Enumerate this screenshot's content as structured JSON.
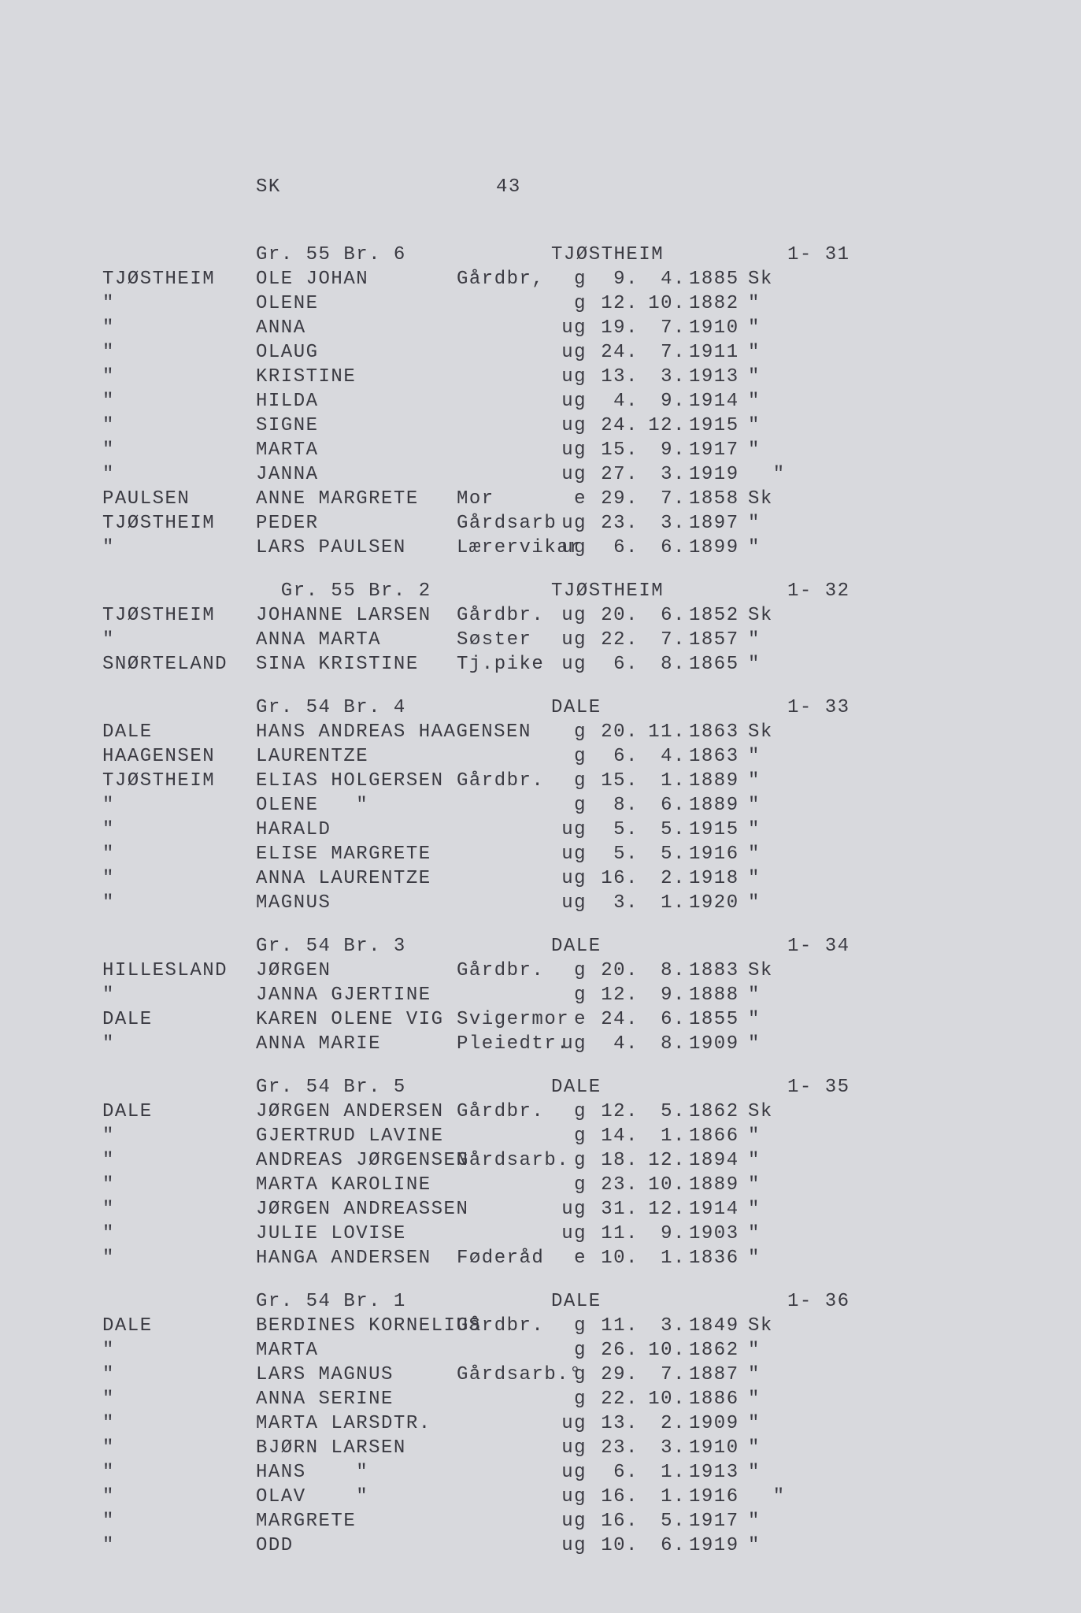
{
  "header": {
    "left": "SK",
    "page": "43"
  },
  "sections": [
    {
      "gr": "Gr. 55 Br. 6",
      "loc": "TJØSTHEIM",
      "code": "1- 31",
      "rows": [
        {
          "surname": "TJØSTHEIM",
          "name": "OLE JOHAN",
          "occ": "Gårdbr,",
          "stat": "g",
          "day": "9",
          "mon": "4",
          "year": "1885",
          "src": "Sk"
        },
        {
          "surname": "\"",
          "name": "OLENE",
          "occ": "",
          "stat": "g",
          "day": "12",
          "mon": "10",
          "year": "1882",
          "src": "\""
        },
        {
          "surname": "\"",
          "name": "ANNA",
          "occ": "",
          "stat": "ug",
          "day": "19",
          "mon": "7",
          "year": "1910",
          "src": "\""
        },
        {
          "surname": "\"",
          "name": "OLAUG",
          "occ": "",
          "stat": "ug",
          "day": "24",
          "mon": "7",
          "year": "1911",
          "src": "\""
        },
        {
          "surname": "\"",
          "name": "KRISTINE",
          "occ": "",
          "stat": "ug",
          "day": "13",
          "mon": "3",
          "year": "1913",
          "src": "\""
        },
        {
          "surname": "\"",
          "name": "HILDA",
          "occ": "",
          "stat": "ug",
          "day": "4",
          "mon": "9",
          "year": "1914",
          "src": "\""
        },
        {
          "surname": "\"",
          "name": "SIGNE",
          "occ": "",
          "stat": "ug",
          "day": "24",
          "mon": "12",
          "year": "1915",
          "src": "\""
        },
        {
          "surname": "\"",
          "name": "MARTA",
          "occ": "",
          "stat": "ug",
          "day": "15",
          "mon": "9",
          "year": "1917",
          "src": "\""
        },
        {
          "surname": "\"",
          "name": "JANNA",
          "occ": "",
          "stat": "ug",
          "day": "27",
          "mon": "3",
          "year": "1919",
          "src": "  \""
        },
        {
          "surname": "PAULSEN",
          "name": "ANNE MARGRETE",
          "occ": "Mor",
          "stat": "e",
          "day": "29",
          "mon": "7",
          "year": "1858",
          "src": "Sk"
        },
        {
          "surname": "TJØSTHEIM",
          "name": "PEDER",
          "occ": "Gårdsarb",
          "stat": "ug",
          "day": "23",
          "mon": "3",
          "year": "1897",
          "src": "\""
        },
        {
          "surname": "\"",
          "name": "LARS PAULSEN",
          "occ": "Lærervikar",
          "stat": "ug",
          "day": "6",
          "mon": "6",
          "year": "1899",
          "src": "\""
        }
      ]
    },
    {
      "gr": "  Gr. 55 Br. 2",
      "loc": "TJØSTHEIM",
      "code": "1- 32",
      "rows": [
        {
          "surname": "TJØSTHEIM",
          "name": "JOHANNE LARSEN",
          "occ": "Gårdbr.",
          "stat": "ug",
          "day": "20",
          "mon": "6",
          "year": "1852",
          "src": "Sk"
        },
        {
          "surname": "\"",
          "name": "ANNA MARTA",
          "occ": "Søster",
          "stat": "ug",
          "day": "22",
          "mon": "7",
          "year": "1857",
          "src": "\""
        },
        {
          "surname": "SNØRTELAND",
          "name": "SINA KRISTINE",
          "occ": "Tj.pike",
          "stat": "ug",
          "day": "6",
          "mon": "8",
          "year": "1865",
          "src": "\""
        }
      ]
    },
    {
      "gr": "Gr. 54 Br. 4",
      "loc": "DALE",
      "code": "1- 33",
      "rows": [
        {
          "surname": "DALE",
          "name": "HANS ANDREAS HAAGENSEN",
          "occ": "",
          "stat": "g",
          "day": "20",
          "mon": "11",
          "year": "1863",
          "src": "Sk"
        },
        {
          "surname": "HAAGENSEN",
          "name": "LAURENTZE",
          "occ": "",
          "stat": "g",
          "day": "6",
          "mon": "4",
          "year": "1863",
          "src": "\""
        },
        {
          "surname": "TJØSTHEIM",
          "name": "ELIAS HOLGERSEN",
          "occ": "Gårdbr.",
          "stat": "g",
          "day": "15",
          "mon": "1",
          "year": "1889",
          "src": "\""
        },
        {
          "surname": "\"",
          "name": "OLENE   \"",
          "occ": "",
          "stat": "g",
          "day": "8",
          "mon": "6",
          "year": "1889",
          "src": "\""
        },
        {
          "surname": "\"",
          "name": "HARALD",
          "occ": "",
          "stat": "ug",
          "day": "5",
          "mon": "5",
          "year": "1915",
          "src": "\""
        },
        {
          "surname": "\"",
          "name": "ELISE MARGRETE",
          "occ": "",
          "stat": "ug",
          "day": "5",
          "mon": "5",
          "year": "1916",
          "src": "\""
        },
        {
          "surname": "\"",
          "name": "ANNA LAURENTZE",
          "occ": "",
          "stat": "ug",
          "day": "16",
          "mon": "2",
          "year": "1918",
          "src": "\""
        },
        {
          "surname": "\"",
          "name": "MAGNUS",
          "occ": "",
          "stat": "ug",
          "day": "3",
          "mon": "1",
          "year": "1920",
          "src": "\""
        }
      ]
    },
    {
      "gr": "Gr. 54 Br. 3",
      "loc": "DALE",
      "code": "1- 34",
      "rows": [
        {
          "surname": "HILLESLAND",
          "name": "JØRGEN",
          "occ": "Gårdbr.",
          "stat": "g",
          "day": "20",
          "mon": "8",
          "year": "1883",
          "src": "Sk"
        },
        {
          "surname": "\"",
          "name": "JANNA GJERTINE",
          "occ": "",
          "stat": "g",
          "day": "12",
          "mon": "9",
          "year": "1888",
          "src": "\""
        },
        {
          "surname": "DALE",
          "name": "KAREN OLENE VIG",
          "occ": "Svigermor",
          "stat": "e",
          "day": "24",
          "mon": "6",
          "year": "1855",
          "src": "\""
        },
        {
          "surname": "\"",
          "name": "ANNA MARIE",
          "occ": "Pleiedtr.",
          "stat": "ug",
          "day": "4",
          "mon": "8",
          "year": "1909",
          "src": "\""
        }
      ]
    },
    {
      "gr": "Gr. 54 Br. 5",
      "loc": "DALE",
      "code": "1- 35",
      "rows": [
        {
          "surname": "DALE",
          "name": "JØRGEN ANDERSEN",
          "occ": "Gårdbr.",
          "stat": "g",
          "day": "12",
          "mon": "5",
          "year": "1862",
          "src": "Sk"
        },
        {
          "surname": "\"",
          "name": "GJERTRUD LAVINE",
          "occ": "",
          "stat": "g",
          "day": "14",
          "mon": "1",
          "year": "1866",
          "src": "\""
        },
        {
          "surname": "\"",
          "name": "ANDREAS JØRGENSEN",
          "occ": "Gårdsarb.",
          "stat": "g",
          "day": "18",
          "mon": "12",
          "year": "1894",
          "src": "\""
        },
        {
          "surname": "\"",
          "name": "MARTA KAROLINE",
          "occ": "",
          "stat": "g",
          "day": "23",
          "mon": "10",
          "year": "1889",
          "src": "\""
        },
        {
          "surname": "\"",
          "name": "JØRGEN ANDREASSEN",
          "occ": "",
          "stat": "ug",
          "day": "31",
          "mon": "12",
          "year": "1914",
          "src": "\""
        },
        {
          "surname": "\"",
          "name": "JULIE LOVISE",
          "occ": "",
          "stat": "ug",
          "day": "11",
          "mon": "9",
          "year": "1903",
          "src": "\""
        },
        {
          "surname": "\"",
          "name": "HANGA ANDERSEN",
          "occ": "Føderåd",
          "stat": "e",
          "day": "10",
          "mon": "1",
          "year": "1836",
          "src": "\""
        }
      ]
    },
    {
      "gr": "Gr. 54 Br. 1",
      "loc": "DALE",
      "code": "1- 36",
      "rows": [
        {
          "surname": "DALE",
          "name": "BERDINES KORNELIUS",
          "occ": "Gårdbr.",
          "stat": "g",
          "day": "11",
          "mon": "3",
          "year": "1849",
          "src": "Sk"
        },
        {
          "surname": "\"",
          "name": "MARTA",
          "occ": "",
          "stat": "g",
          "day": "26",
          "mon": "10",
          "year": "1862",
          "src": "\""
        },
        {
          "surname": "\"",
          "name": "LARS MAGNUS",
          "occ": "Gårdsarb.°",
          "stat": "g",
          "day": "29",
          "mon": "7",
          "year": "1887",
          "src": "\""
        },
        {
          "surname": "\"",
          "name": "ANNA SERINE",
          "occ": "",
          "stat": "g",
          "day": "22",
          "mon": "10",
          "year": "1886",
          "src": "\""
        },
        {
          "surname": "\"",
          "name": "MARTA LARSDTR.",
          "occ": "",
          "stat": "ug",
          "day": "13",
          "mon": "2",
          "year": "1909",
          "src": "\""
        },
        {
          "surname": "\"",
          "name": "BJØRN LARSEN",
          "occ": "",
          "stat": "ug",
          "day": "23",
          "mon": "3",
          "year": "1910",
          "src": "\""
        },
        {
          "surname": "\"",
          "name": "HANS    \"",
          "occ": "",
          "stat": "ug",
          "day": "6",
          "mon": "1",
          "year": "1913",
          "src": "\""
        },
        {
          "surname": "\"",
          "name": "OLAV    \"",
          "occ": "",
          "stat": "ug",
          "day": "16",
          "mon": "1",
          "year": "1916",
          "src": "  \""
        },
        {
          "surname": "\"",
          "name": "MARGRETE",
          "occ": "",
          "stat": "ug",
          "day": "16",
          "mon": "5",
          "year": "1917",
          "src": "\""
        },
        {
          "surname": "\"",
          "name": "ODD",
          "occ": "",
          "stat": "ug",
          "day": "10",
          "mon": "6",
          "year": "1919",
          "src": "\""
        }
      ]
    }
  ]
}
